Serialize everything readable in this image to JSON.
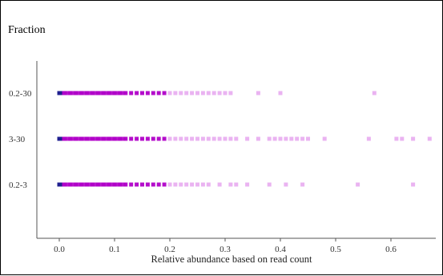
{
  "chart_data": {
    "type": "scatter",
    "ylabel": "Fraction",
    "xlabel": "Relative abundance based on read count",
    "categories": [
      "0.2-3",
      "3-30",
      "0.2-30"
    ],
    "xlim": [
      -0.04,
      0.68
    ],
    "xticks": [
      "0.0",
      "0.1",
      "0.2",
      "0.3",
      "0.4",
      "0.5",
      "0.6"
    ],
    "grid": false,
    "colors": {
      "low": "#1f1f8f",
      "mid": "#b000c8",
      "high": "#e6a6ee"
    },
    "series": [
      {
        "category": "0.2-3",
        "x": [
          0.0,
          0.005,
          0.01,
          0.02,
          0.03,
          0.04,
          0.05,
          0.06,
          0.07,
          0.08,
          0.09,
          0.1,
          0.11,
          0.12,
          0.13,
          0.14,
          0.15,
          0.16,
          0.17,
          0.18,
          0.19,
          0.2,
          0.21,
          0.22,
          0.23,
          0.24,
          0.25,
          0.26,
          0.27,
          0.29,
          0.31,
          0.32,
          0.34,
          0.38,
          0.41,
          0.44,
          0.54,
          0.64
        ]
      },
      {
        "category": "3-30",
        "x": [
          0.0,
          0.005,
          0.01,
          0.02,
          0.03,
          0.04,
          0.05,
          0.06,
          0.07,
          0.08,
          0.09,
          0.1,
          0.11,
          0.12,
          0.13,
          0.14,
          0.15,
          0.16,
          0.17,
          0.18,
          0.19,
          0.2,
          0.21,
          0.22,
          0.23,
          0.24,
          0.25,
          0.26,
          0.27,
          0.28,
          0.29,
          0.3,
          0.31,
          0.32,
          0.34,
          0.36,
          0.38,
          0.39,
          0.4,
          0.41,
          0.42,
          0.43,
          0.44,
          0.45,
          0.48,
          0.56,
          0.61,
          0.62,
          0.64,
          0.67
        ]
      },
      {
        "category": "0.2-30",
        "x": [
          0.0,
          0.005,
          0.01,
          0.02,
          0.03,
          0.04,
          0.05,
          0.06,
          0.07,
          0.08,
          0.09,
          0.1,
          0.11,
          0.12,
          0.13,
          0.14,
          0.15,
          0.16,
          0.17,
          0.18,
          0.19,
          0.2,
          0.21,
          0.22,
          0.23,
          0.24,
          0.25,
          0.26,
          0.27,
          0.28,
          0.29,
          0.3,
          0.31,
          0.36,
          0.4,
          0.57
        ]
      }
    ]
  }
}
